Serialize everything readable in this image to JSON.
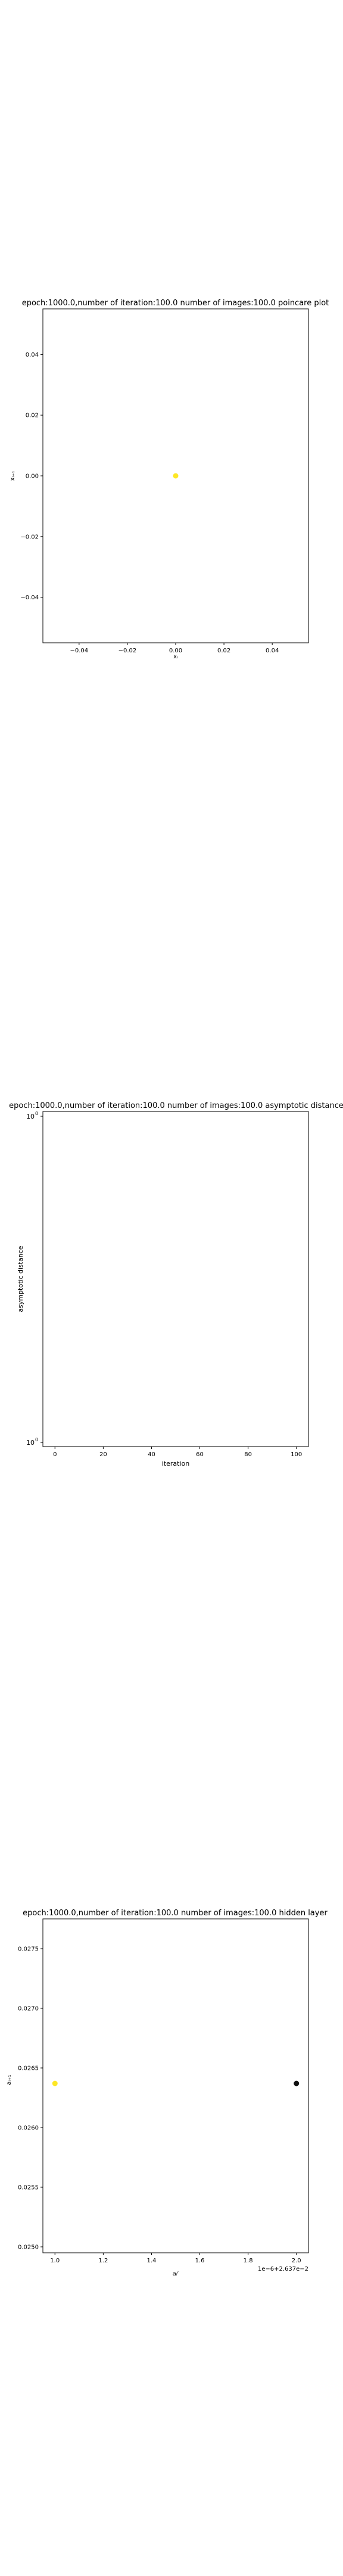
{
  "chart_data": [
    {
      "type": "scatter",
      "title": "epoch:1000.0,number of iteration:100.0 number of images:100.0 poincare plot",
      "xlabel": "xᵢ",
      "ylabel": "xᵢ₊₁",
      "xlim": [
        -0.055,
        0.055
      ],
      "ylim": [
        -0.055,
        0.055
      ],
      "xticks": [
        -0.04,
        -0.02,
        0.0,
        0.02,
        0.04
      ],
      "yticks": [
        -0.04,
        -0.02,
        0.0,
        0.02,
        0.04
      ],
      "xtick_labels": [
        "−0.04",
        "−0.02",
        "0.00",
        "0.02",
        "0.04"
      ],
      "ytick_labels": [
        "−0.04",
        "−0.02",
        "0.00",
        "0.02",
        "0.04"
      ],
      "x_offset_label": "",
      "grid": false,
      "series": [
        {
          "color": "#fde725",
          "points": [
            {
              "x": 0.0,
              "y": 0.0
            }
          ]
        }
      ]
    },
    {
      "type": "line",
      "title": "epoch:1000.0,number of iteration:100.0  number of images:100.0 asymptotic distance",
      "xlabel": "iteration",
      "ylabel": "asymptotic distance",
      "xlim": [
        -5,
        105
      ],
      "ylim_log10": [
        -0.05,
        0.05
      ],
      "yscale": "log",
      "xticks": [
        0,
        20,
        40,
        60,
        80,
        100
      ],
      "xtick_labels": [
        "0",
        "20",
        "40",
        "60",
        "80",
        "100"
      ],
      "ytick_labels": [
        {
          "base": "10",
          "exp": "0"
        },
        {
          "base": "10",
          "exp": "0"
        }
      ],
      "grid": false,
      "series": []
    },
    {
      "type": "scatter",
      "title": "epoch:1000.0,number of iteration:100.0  number of images:100.0 hidden layer",
      "xlabel": "aᵢʳ",
      "ylabel": "aᵢ₊₁",
      "xlim": [
        0.95,
        2.05
      ],
      "ylim": [
        0.02495,
        0.02775
      ],
      "xticks": [
        1.0,
        1.2,
        1.4,
        1.6,
        1.8,
        2.0
      ],
      "yticks": [
        0.025,
        0.0255,
        0.026,
        0.0265,
        0.027,
        0.0275
      ],
      "xtick_labels": [
        "1.0",
        "1.2",
        "1.4",
        "1.6",
        "1.8",
        "2.0"
      ],
      "ytick_labels": [
        "0.0250",
        "0.0255",
        "0.0260",
        "0.0265",
        "0.0270",
        "0.0275"
      ],
      "x_offset_label": "1e−6+2.637e−2",
      "grid": false,
      "series": [
        {
          "color": "#fde725",
          "points": [
            {
              "x": 1.0,
              "y": 0.02637
            }
          ]
        },
        {
          "color": "#111111",
          "points": [
            {
              "x": 2.0,
              "y": 0.02637
            }
          ]
        }
      ]
    }
  ]
}
